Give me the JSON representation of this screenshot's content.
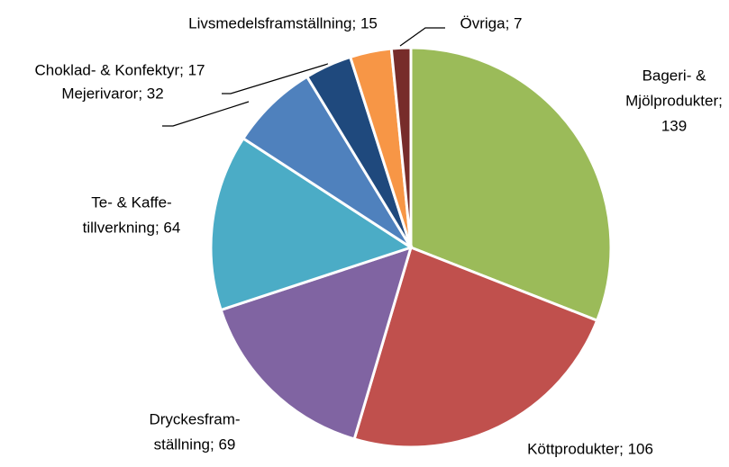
{
  "chart_data": {
    "type": "pie",
    "labels": [
      [
        "Bageri- &",
        "Mjölprodukter;",
        "139"
      ],
      [
        "Köttprodukter; 106"
      ],
      [
        "Dryckesfram-",
        "ställning; 69"
      ],
      [
        "Te- & Kaffe-",
        "tillverkning; 64"
      ],
      [
        "Mejerivaror; 32"
      ],
      [
        "Choklad- & Konfektyr; 17"
      ],
      [
        "Livsmedelsframställning; 15"
      ],
      [
        "Övriga; 7"
      ]
    ],
    "values": [
      139,
      106,
      69,
      64,
      32,
      17,
      15,
      7
    ],
    "colors": [
      "#9bbb59",
      "#c0504d",
      "#8064a2",
      "#4bacc6",
      "#4f81bd",
      "#1f497d",
      "#f79646",
      "#772c2a"
    ]
  }
}
